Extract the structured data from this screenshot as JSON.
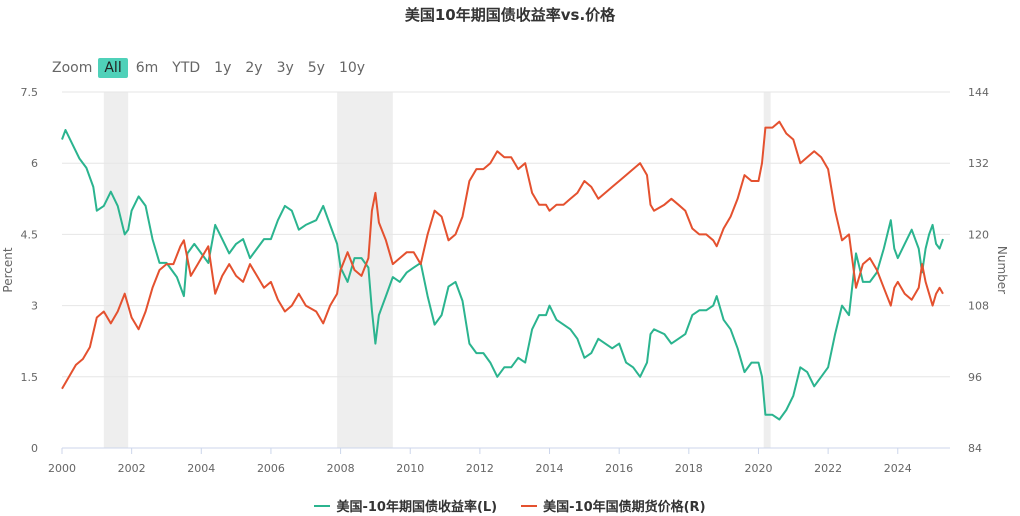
{
  "chart_data": {
    "type": "line",
    "title": "美国10年期国债收益率vs.价格",
    "left_axis": {
      "label": "Percent",
      "range": [
        0,
        7.5
      ],
      "ticks": [
        "0",
        "1.5",
        "3",
        "4.5",
        "6",
        "7.5"
      ]
    },
    "right_axis": {
      "label": "Number",
      "range": [
        84,
        144
      ],
      "ticks": [
        "84",
        "96",
        "108",
        "120",
        "132",
        "144"
      ]
    },
    "x_axis": {
      "range": [
        2000,
        2025.5
      ],
      "ticks": [
        "2000",
        "2002",
        "2004",
        "2006",
        "2008",
        "2010",
        "2012",
        "2014",
        "2016",
        "2018",
        "2020",
        "2022",
        "2024"
      ]
    },
    "recession_bands": [
      [
        2001.2,
        2001.9
      ],
      [
        2007.9,
        2009.5
      ],
      [
        2020.15,
        2020.35
      ]
    ],
    "grid": true,
    "legend_position": "bottom",
    "series": [
      {
        "name": "美国-10年期国债收益率(L)",
        "axis": "left",
        "color": "#2bb48f",
        "points": [
          [
            2000.0,
            6.5
          ],
          [
            2000.1,
            6.7
          ],
          [
            2000.3,
            6.4
          ],
          [
            2000.5,
            6.1
          ],
          [
            2000.7,
            5.9
          ],
          [
            2000.9,
            5.5
          ],
          [
            2001.0,
            5.0
          ],
          [
            2001.2,
            5.1
          ],
          [
            2001.4,
            5.4
          ],
          [
            2001.6,
            5.1
          ],
          [
            2001.8,
            4.5
          ],
          [
            2001.9,
            4.6
          ],
          [
            2002.0,
            5.0
          ],
          [
            2002.2,
            5.3
          ],
          [
            2002.4,
            5.1
          ],
          [
            2002.6,
            4.4
          ],
          [
            2002.8,
            3.9
          ],
          [
            2003.0,
            3.9
          ],
          [
            2003.3,
            3.6
          ],
          [
            2003.5,
            3.2
          ],
          [
            2003.6,
            4.1
          ],
          [
            2003.8,
            4.3
          ],
          [
            2004.0,
            4.1
          ],
          [
            2004.2,
            3.9
          ],
          [
            2004.4,
            4.7
          ],
          [
            2004.6,
            4.4
          ],
          [
            2004.8,
            4.1
          ],
          [
            2005.0,
            4.3
          ],
          [
            2005.2,
            4.4
          ],
          [
            2005.4,
            4.0
          ],
          [
            2005.6,
            4.2
          ],
          [
            2005.8,
            4.4
          ],
          [
            2006.0,
            4.4
          ],
          [
            2006.2,
            4.8
          ],
          [
            2006.4,
            5.1
          ],
          [
            2006.6,
            5.0
          ],
          [
            2006.8,
            4.6
          ],
          [
            2007.0,
            4.7
          ],
          [
            2007.3,
            4.8
          ],
          [
            2007.5,
            5.1
          ],
          [
            2007.7,
            4.7
          ],
          [
            2007.9,
            4.3
          ],
          [
            2008.0,
            3.8
          ],
          [
            2008.2,
            3.5
          ],
          [
            2008.4,
            4.0
          ],
          [
            2008.6,
            4.0
          ],
          [
            2008.8,
            3.8
          ],
          [
            2008.9,
            2.9
          ],
          [
            2009.0,
            2.2
          ],
          [
            2009.1,
            2.8
          ],
          [
            2009.3,
            3.2
          ],
          [
            2009.5,
            3.6
          ],
          [
            2009.7,
            3.5
          ],
          [
            2009.9,
            3.7
          ],
          [
            2010.1,
            3.8
          ],
          [
            2010.3,
            3.9
          ],
          [
            2010.5,
            3.2
          ],
          [
            2010.7,
            2.6
          ],
          [
            2010.9,
            2.8
          ],
          [
            2011.1,
            3.4
          ],
          [
            2011.3,
            3.5
          ],
          [
            2011.5,
            3.1
          ],
          [
            2011.7,
            2.2
          ],
          [
            2011.9,
            2.0
          ],
          [
            2012.1,
            2.0
          ],
          [
            2012.3,
            1.8
          ],
          [
            2012.5,
            1.5
          ],
          [
            2012.7,
            1.7
          ],
          [
            2012.9,
            1.7
          ],
          [
            2013.1,
            1.9
          ],
          [
            2013.3,
            1.8
          ],
          [
            2013.5,
            2.5
          ],
          [
            2013.7,
            2.8
          ],
          [
            2013.9,
            2.8
          ],
          [
            2014.0,
            3.0
          ],
          [
            2014.2,
            2.7
          ],
          [
            2014.4,
            2.6
          ],
          [
            2014.6,
            2.5
          ],
          [
            2014.8,
            2.3
          ],
          [
            2015.0,
            1.9
          ],
          [
            2015.2,
            2.0
          ],
          [
            2015.4,
            2.3
          ],
          [
            2015.6,
            2.2
          ],
          [
            2015.8,
            2.1
          ],
          [
            2016.0,
            2.2
          ],
          [
            2016.2,
            1.8
          ],
          [
            2016.4,
            1.7
          ],
          [
            2016.6,
            1.5
          ],
          [
            2016.8,
            1.8
          ],
          [
            2016.9,
            2.4
          ],
          [
            2017.0,
            2.5
          ],
          [
            2017.3,
            2.4
          ],
          [
            2017.5,
            2.2
          ],
          [
            2017.7,
            2.3
          ],
          [
            2017.9,
            2.4
          ],
          [
            2018.1,
            2.8
          ],
          [
            2018.3,
            2.9
          ],
          [
            2018.5,
            2.9
          ],
          [
            2018.7,
            3.0
          ],
          [
            2018.8,
            3.2
          ],
          [
            2019.0,
            2.7
          ],
          [
            2019.2,
            2.5
          ],
          [
            2019.4,
            2.1
          ],
          [
            2019.6,
            1.6
          ],
          [
            2019.8,
            1.8
          ],
          [
            2020.0,
            1.8
          ],
          [
            2020.1,
            1.5
          ],
          [
            2020.2,
            0.7
          ],
          [
            2020.4,
            0.7
          ],
          [
            2020.6,
            0.6
          ],
          [
            2020.8,
            0.8
          ],
          [
            2021.0,
            1.1
          ],
          [
            2021.2,
            1.7
          ],
          [
            2021.4,
            1.6
          ],
          [
            2021.6,
            1.3
          ],
          [
            2021.8,
            1.5
          ],
          [
            2022.0,
            1.7
          ],
          [
            2022.2,
            2.4
          ],
          [
            2022.4,
            3.0
          ],
          [
            2022.6,
            2.8
          ],
          [
            2022.8,
            4.1
          ],
          [
            2022.9,
            3.8
          ],
          [
            2023.0,
            3.5
          ],
          [
            2023.2,
            3.5
          ],
          [
            2023.4,
            3.7
          ],
          [
            2023.6,
            4.2
          ],
          [
            2023.8,
            4.8
          ],
          [
            2023.9,
            4.2
          ],
          [
            2024.0,
            4.0
          ],
          [
            2024.2,
            4.3
          ],
          [
            2024.4,
            4.6
          ],
          [
            2024.6,
            4.2
          ],
          [
            2024.7,
            3.7
          ],
          [
            2024.8,
            4.2
          ],
          [
            2024.9,
            4.5
          ],
          [
            2025.0,
            4.7
          ],
          [
            2025.1,
            4.3
          ],
          [
            2025.2,
            4.2
          ],
          [
            2025.3,
            4.4
          ]
        ]
      },
      {
        "name": "美国-10年国债期货价格(R)",
        "axis": "right",
        "color": "#e4512f",
        "points": [
          [
            2000.0,
            94
          ],
          [
            2000.2,
            96
          ],
          [
            2000.4,
            98
          ],
          [
            2000.6,
            99
          ],
          [
            2000.8,
            101
          ],
          [
            2001.0,
            106
          ],
          [
            2001.2,
            107
          ],
          [
            2001.4,
            105
          ],
          [
            2001.6,
            107
          ],
          [
            2001.8,
            110
          ],
          [
            2001.9,
            108
          ],
          [
            2002.0,
            106
          ],
          [
            2002.2,
            104
          ],
          [
            2002.4,
            107
          ],
          [
            2002.6,
            111
          ],
          [
            2002.8,
            114
          ],
          [
            2003.0,
            115
          ],
          [
            2003.2,
            115
          ],
          [
            2003.4,
            118
          ],
          [
            2003.5,
            119
          ],
          [
            2003.7,
            113
          ],
          [
            2003.9,
            115
          ],
          [
            2004.0,
            116
          ],
          [
            2004.2,
            118
          ],
          [
            2004.4,
            110
          ],
          [
            2004.6,
            113
          ],
          [
            2004.8,
            115
          ],
          [
            2005.0,
            113
          ],
          [
            2005.2,
            112
          ],
          [
            2005.4,
            115
          ],
          [
            2005.6,
            113
          ],
          [
            2005.8,
            111
          ],
          [
            2006.0,
            112
          ],
          [
            2006.2,
            109
          ],
          [
            2006.4,
            107
          ],
          [
            2006.6,
            108
          ],
          [
            2006.8,
            110
          ],
          [
            2007.0,
            108
          ],
          [
            2007.3,
            107
          ],
          [
            2007.5,
            105
          ],
          [
            2007.7,
            108
          ],
          [
            2007.9,
            110
          ],
          [
            2008.0,
            114
          ],
          [
            2008.2,
            117
          ],
          [
            2008.4,
            114
          ],
          [
            2008.6,
            113
          ],
          [
            2008.8,
            116
          ],
          [
            2008.9,
            124
          ],
          [
            2009.0,
            127
          ],
          [
            2009.1,
            122
          ],
          [
            2009.3,
            119
          ],
          [
            2009.5,
            115
          ],
          [
            2009.7,
            116
          ],
          [
            2009.9,
            117
          ],
          [
            2010.1,
            117
          ],
          [
            2010.3,
            115
          ],
          [
            2010.5,
            120
          ],
          [
            2010.7,
            124
          ],
          [
            2010.9,
            123
          ],
          [
            2011.1,
            119
          ],
          [
            2011.3,
            120
          ],
          [
            2011.5,
            123
          ],
          [
            2011.7,
            129
          ],
          [
            2011.9,
            131
          ],
          [
            2012.1,
            131
          ],
          [
            2012.3,
            132
          ],
          [
            2012.5,
            134
          ],
          [
            2012.7,
            133
          ],
          [
            2012.9,
            133
          ],
          [
            2013.1,
            131
          ],
          [
            2013.3,
            132
          ],
          [
            2013.5,
            127
          ],
          [
            2013.7,
            125
          ],
          [
            2013.9,
            125
          ],
          [
            2014.0,
            124
          ],
          [
            2014.2,
            125
          ],
          [
            2014.4,
            125
          ],
          [
            2014.6,
            126
          ],
          [
            2014.8,
            127
          ],
          [
            2015.0,
            129
          ],
          [
            2015.2,
            128
          ],
          [
            2015.4,
            126
          ],
          [
            2015.6,
            127
          ],
          [
            2015.8,
            128
          ],
          [
            2016.0,
            129
          ],
          [
            2016.2,
            130
          ],
          [
            2016.4,
            131
          ],
          [
            2016.6,
            132
          ],
          [
            2016.8,
            130
          ],
          [
            2016.9,
            125
          ],
          [
            2017.0,
            124
          ],
          [
            2017.3,
            125
          ],
          [
            2017.5,
            126
          ],
          [
            2017.7,
            125
          ],
          [
            2017.9,
            124
          ],
          [
            2018.1,
            121
          ],
          [
            2018.3,
            120
          ],
          [
            2018.5,
            120
          ],
          [
            2018.7,
            119
          ],
          [
            2018.8,
            118
          ],
          [
            2019.0,
            121
          ],
          [
            2019.2,
            123
          ],
          [
            2019.4,
            126
          ],
          [
            2019.6,
            130
          ],
          [
            2019.8,
            129
          ],
          [
            2020.0,
            129
          ],
          [
            2020.1,
            132
          ],
          [
            2020.2,
            138
          ],
          [
            2020.4,
            138
          ],
          [
            2020.6,
            139
          ],
          [
            2020.8,
            137
          ],
          [
            2021.0,
            136
          ],
          [
            2021.2,
            132
          ],
          [
            2021.4,
            133
          ],
          [
            2021.6,
            134
          ],
          [
            2021.8,
            133
          ],
          [
            2022.0,
            131
          ],
          [
            2022.2,
            124
          ],
          [
            2022.4,
            119
          ],
          [
            2022.6,
            120
          ],
          [
            2022.8,
            111
          ],
          [
            2022.9,
            113
          ],
          [
            2023.0,
            115
          ],
          [
            2023.2,
            116
          ],
          [
            2023.4,
            114
          ],
          [
            2023.6,
            111
          ],
          [
            2023.8,
            108
          ],
          [
            2023.9,
            111
          ],
          [
            2024.0,
            112
          ],
          [
            2024.2,
            110
          ],
          [
            2024.4,
            109
          ],
          [
            2024.6,
            111
          ],
          [
            2024.7,
            115
          ],
          [
            2024.8,
            112
          ],
          [
            2024.9,
            110
          ],
          [
            2025.0,
            108
          ],
          [
            2025.1,
            110
          ],
          [
            2025.2,
            111
          ],
          [
            2025.3,
            110
          ]
        ]
      }
    ]
  },
  "zoom": {
    "label": "Zoom",
    "options": [
      "All",
      "6m",
      "YTD",
      "1y",
      "2y",
      "3y",
      "5y",
      "10y"
    ],
    "active": "All"
  }
}
